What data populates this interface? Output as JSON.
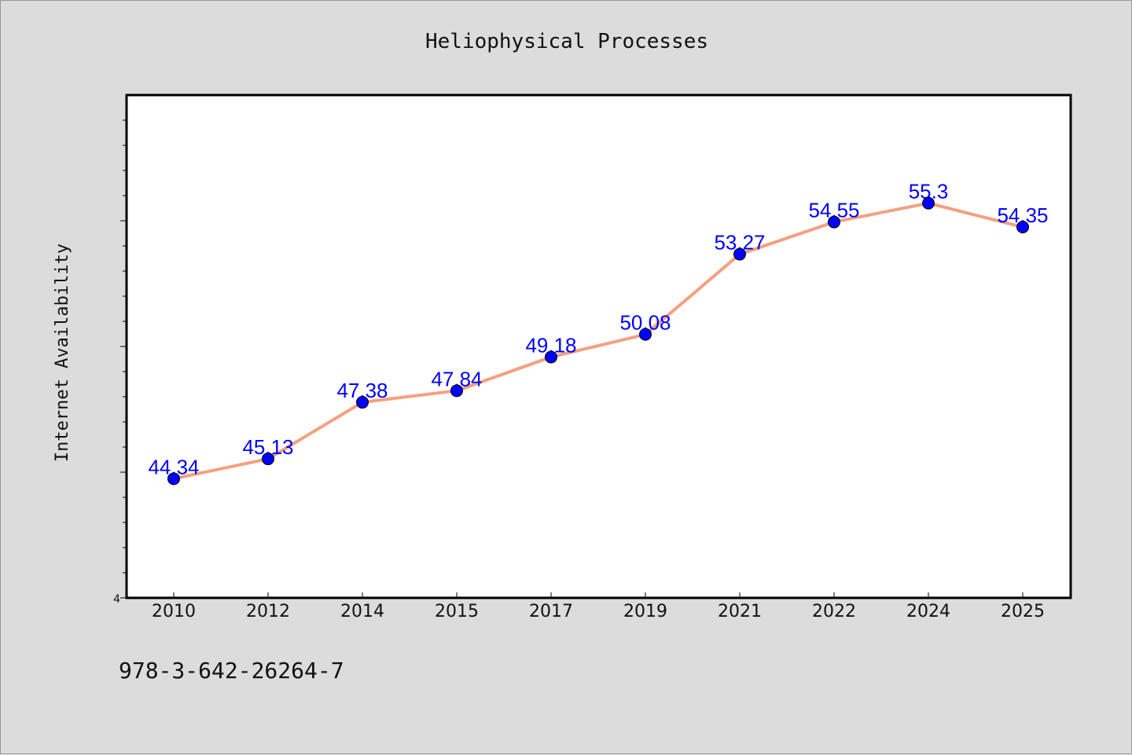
{
  "chart_data": {
    "type": "line",
    "title": "Heliophysical Processes",
    "xlabel": "",
    "ylabel": "Internet Availability",
    "categories": [
      "2010",
      "2012",
      "2014",
      "2015",
      "2017",
      "2019",
      "2021",
      "2022",
      "2024",
      "2025"
    ],
    "series": [
      {
        "values": [
          44.34,
          45.13,
          47.38,
          47.84,
          49.18,
          50.08,
          53.27,
          54.55,
          55.3,
          54.35
        ],
        "data_labels": [
          "44.34",
          "45.13",
          "47.38",
          "47.84",
          "49.18",
          "50.08",
          "53.27",
          "54.55",
          "55.3",
          "54.35"
        ],
        "line_color": "#f4a07f",
        "marker_color": "#0000ff"
      }
    ],
    "y_axis_min_label": "4",
    "ylim": [
      39.6,
      59.6
    ],
    "grid": false,
    "legend": "none"
  },
  "footnote": "978-3-642-26264-7",
  "colors": {
    "background": "#dcdcdc",
    "plot_background": "#ffffff",
    "label_color": "#0000ff"
  }
}
